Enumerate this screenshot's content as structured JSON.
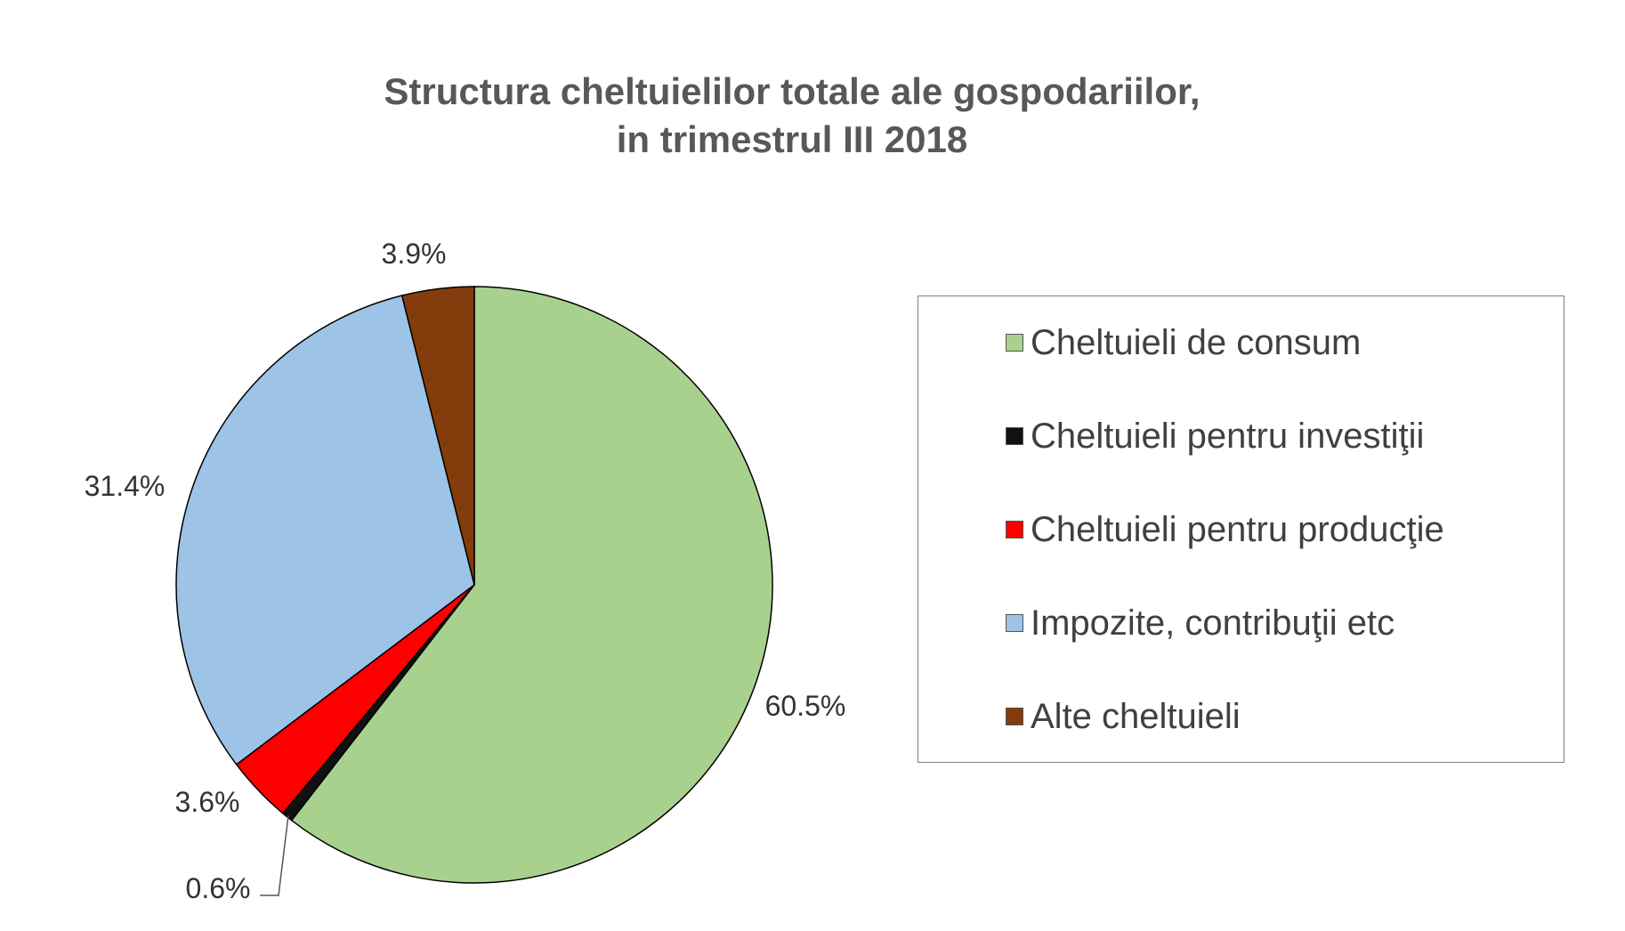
{
  "chart_data": {
    "type": "pie",
    "title_lines": [
      "Structura cheltuielilor totale ale gospodariilor,",
      "in trimestrul III 2018"
    ],
    "slices": [
      {
        "name": "Cheltuieli de consum",
        "value": 60.5,
        "label": "60.5%",
        "color": "#a9d18e"
      },
      {
        "name": "Cheltuieli pentru investiţii",
        "value": 0.6,
        "label": "0.6%",
        "color": "#111111"
      },
      {
        "name": "Cheltuieli pentru producţie",
        "value": 3.6,
        "label": "3.6%",
        "color": "#ff0000"
      },
      {
        "name": "Impozite, contribuţii etc",
        "value": 31.4,
        "label": "31.4%",
        "color": "#9dc3e6"
      },
      {
        "name": "Alte cheltuieli",
        "value": 3.9,
        "label": "3.9%",
        "color": "#843c0c"
      }
    ],
    "start": "12 o'clock",
    "direction": "clockwise",
    "legend_position": "right"
  }
}
